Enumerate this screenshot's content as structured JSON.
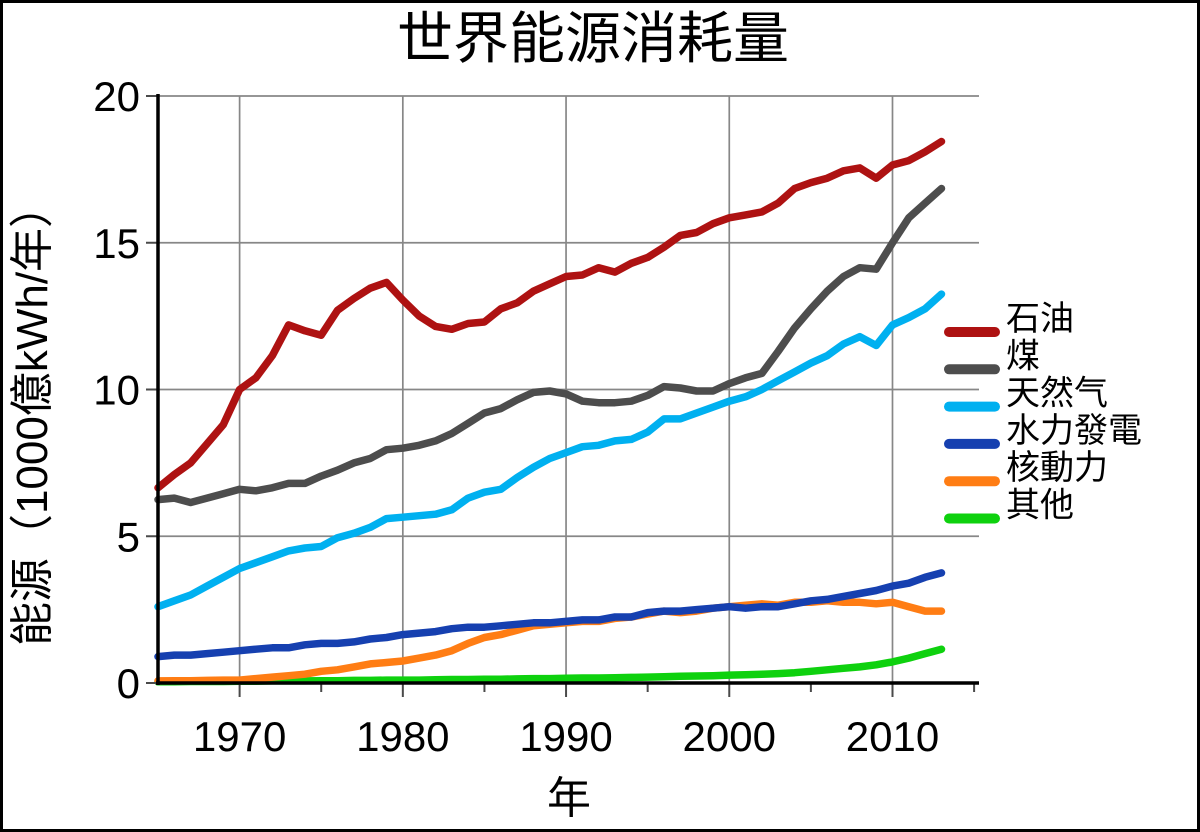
{
  "figure": {
    "title": "世界能源消耗量",
    "x_axis_label": "年",
    "y_axis_label": "能源（1000億kWh/年）"
  },
  "chart_data": {
    "type": "line",
    "title": "世界能源消耗量",
    "xlabel": "年",
    "ylabel": "能源（1000億kWh/年）",
    "xlim": [
      1965,
      2015.3
    ],
    "ylim": [
      0,
      20
    ],
    "xticks_major": [
      1970,
      1980,
      1990,
      2000,
      2010
    ],
    "xticks_minor": [
      1975,
      1985,
      1995,
      2005,
      2015
    ],
    "yticks": [
      0,
      5,
      10,
      15,
      20
    ],
    "grid": true,
    "legend_position": "right-outside",
    "x": [
      1965,
      1966,
      1967,
      1968,
      1969,
      1970,
      1971,
      1972,
      1973,
      1974,
      1975,
      1976,
      1977,
      1978,
      1979,
      1980,
      1981,
      1982,
      1983,
      1984,
      1985,
      1986,
      1987,
      1988,
      1989,
      1990,
      1991,
      1992,
      1993,
      1994,
      1995,
      1996,
      1997,
      1998,
      1999,
      2000,
      2001,
      2002,
      2003,
      2004,
      2005,
      2006,
      2007,
      2008,
      2009,
      2010,
      2011,
      2012,
      2013
    ],
    "series": [
      {
        "key": "oil",
        "name": "石油",
        "color": "#ae1212",
        "values": [
          6.65,
          7.1,
          7.5,
          8.15,
          8.8,
          10.0,
          10.4,
          11.15,
          12.2,
          12.0,
          11.85,
          12.7,
          13.1,
          13.45,
          13.65,
          13.05,
          12.5,
          12.15,
          12.05,
          12.25,
          12.3,
          12.75,
          12.95,
          13.35,
          13.6,
          13.85,
          13.9,
          14.15,
          14.0,
          14.3,
          14.5,
          14.85,
          15.25,
          15.35,
          15.65,
          15.85,
          15.95,
          16.05,
          16.35,
          16.85,
          17.05,
          17.2,
          17.45,
          17.55,
          17.2,
          17.65,
          17.8,
          18.1,
          18.45
        ]
      },
      {
        "key": "coal",
        "name": "煤",
        "color": "#4d4d4d",
        "values": [
          6.25,
          6.3,
          6.15,
          6.3,
          6.45,
          6.6,
          6.55,
          6.65,
          6.8,
          6.8,
          7.05,
          7.25,
          7.5,
          7.65,
          7.95,
          8.0,
          8.1,
          8.25,
          8.5,
          8.85,
          9.2,
          9.35,
          9.65,
          9.9,
          9.95,
          9.85,
          9.6,
          9.55,
          9.55,
          9.6,
          9.8,
          10.1,
          10.05,
          9.95,
          9.95,
          10.2,
          10.4,
          10.55,
          11.3,
          12.1,
          12.75,
          13.35,
          13.85,
          14.15,
          14.1,
          15.0,
          15.85,
          16.35,
          16.85
        ]
      },
      {
        "key": "natural-gas",
        "name": "天然气",
        "color": "#00b0f0",
        "values": [
          2.6,
          2.8,
          3.0,
          3.3,
          3.6,
          3.9,
          4.1,
          4.3,
          4.5,
          4.6,
          4.65,
          4.95,
          5.1,
          5.3,
          5.6,
          5.65,
          5.7,
          5.75,
          5.9,
          6.3,
          6.5,
          6.6,
          7.0,
          7.35,
          7.65,
          7.85,
          8.05,
          8.1,
          8.25,
          8.3,
          8.55,
          9.0,
          9.0,
          9.2,
          9.4,
          9.6,
          9.75,
          10.0,
          10.3,
          10.6,
          10.9,
          11.15,
          11.55,
          11.8,
          11.5,
          12.2,
          12.45,
          12.75,
          13.25
        ]
      },
      {
        "key": "hydro",
        "name": "水力發電",
        "color": "#1640b0",
        "values": [
          0.9,
          0.95,
          0.95,
          1.0,
          1.05,
          1.1,
          1.15,
          1.2,
          1.2,
          1.3,
          1.35,
          1.35,
          1.4,
          1.5,
          1.55,
          1.65,
          1.7,
          1.75,
          1.85,
          1.9,
          1.9,
          1.95,
          2.0,
          2.05,
          2.05,
          2.1,
          2.15,
          2.15,
          2.25,
          2.25,
          2.4,
          2.45,
          2.45,
          2.5,
          2.55,
          2.6,
          2.55,
          2.6,
          2.6,
          2.7,
          2.8,
          2.85,
          2.95,
          3.05,
          3.15,
          3.3,
          3.4,
          3.6,
          3.75
        ]
      },
      {
        "key": "nuclear",
        "name": "核動力",
        "color": "#ff7d14",
        "values": [
          0.07,
          0.08,
          0.08,
          0.09,
          0.1,
          0.1,
          0.15,
          0.2,
          0.25,
          0.3,
          0.4,
          0.45,
          0.55,
          0.65,
          0.7,
          0.75,
          0.85,
          0.95,
          1.1,
          1.35,
          1.55,
          1.65,
          1.8,
          1.95,
          2.0,
          2.05,
          2.1,
          2.1,
          2.2,
          2.25,
          2.35,
          2.45,
          2.4,
          2.45,
          2.55,
          2.6,
          2.65,
          2.7,
          2.65,
          2.75,
          2.75,
          2.8,
          2.75,
          2.75,
          2.7,
          2.75,
          2.6,
          2.45,
          2.45
        ]
      },
      {
        "key": "other",
        "name": "其他",
        "color": "#0ed10e",
        "values": [
          0.04,
          0.04,
          0.05,
          0.05,
          0.05,
          0.06,
          0.06,
          0.07,
          0.07,
          0.07,
          0.08,
          0.08,
          0.09,
          0.09,
          0.1,
          0.1,
          0.1,
          0.11,
          0.12,
          0.12,
          0.13,
          0.13,
          0.14,
          0.15,
          0.15,
          0.16,
          0.17,
          0.17,
          0.18,
          0.19,
          0.2,
          0.21,
          0.23,
          0.24,
          0.25,
          0.27,
          0.28,
          0.3,
          0.32,
          0.35,
          0.4,
          0.45,
          0.5,
          0.55,
          0.62,
          0.72,
          0.85,
          1.0,
          1.15
        ]
      }
    ]
  }
}
